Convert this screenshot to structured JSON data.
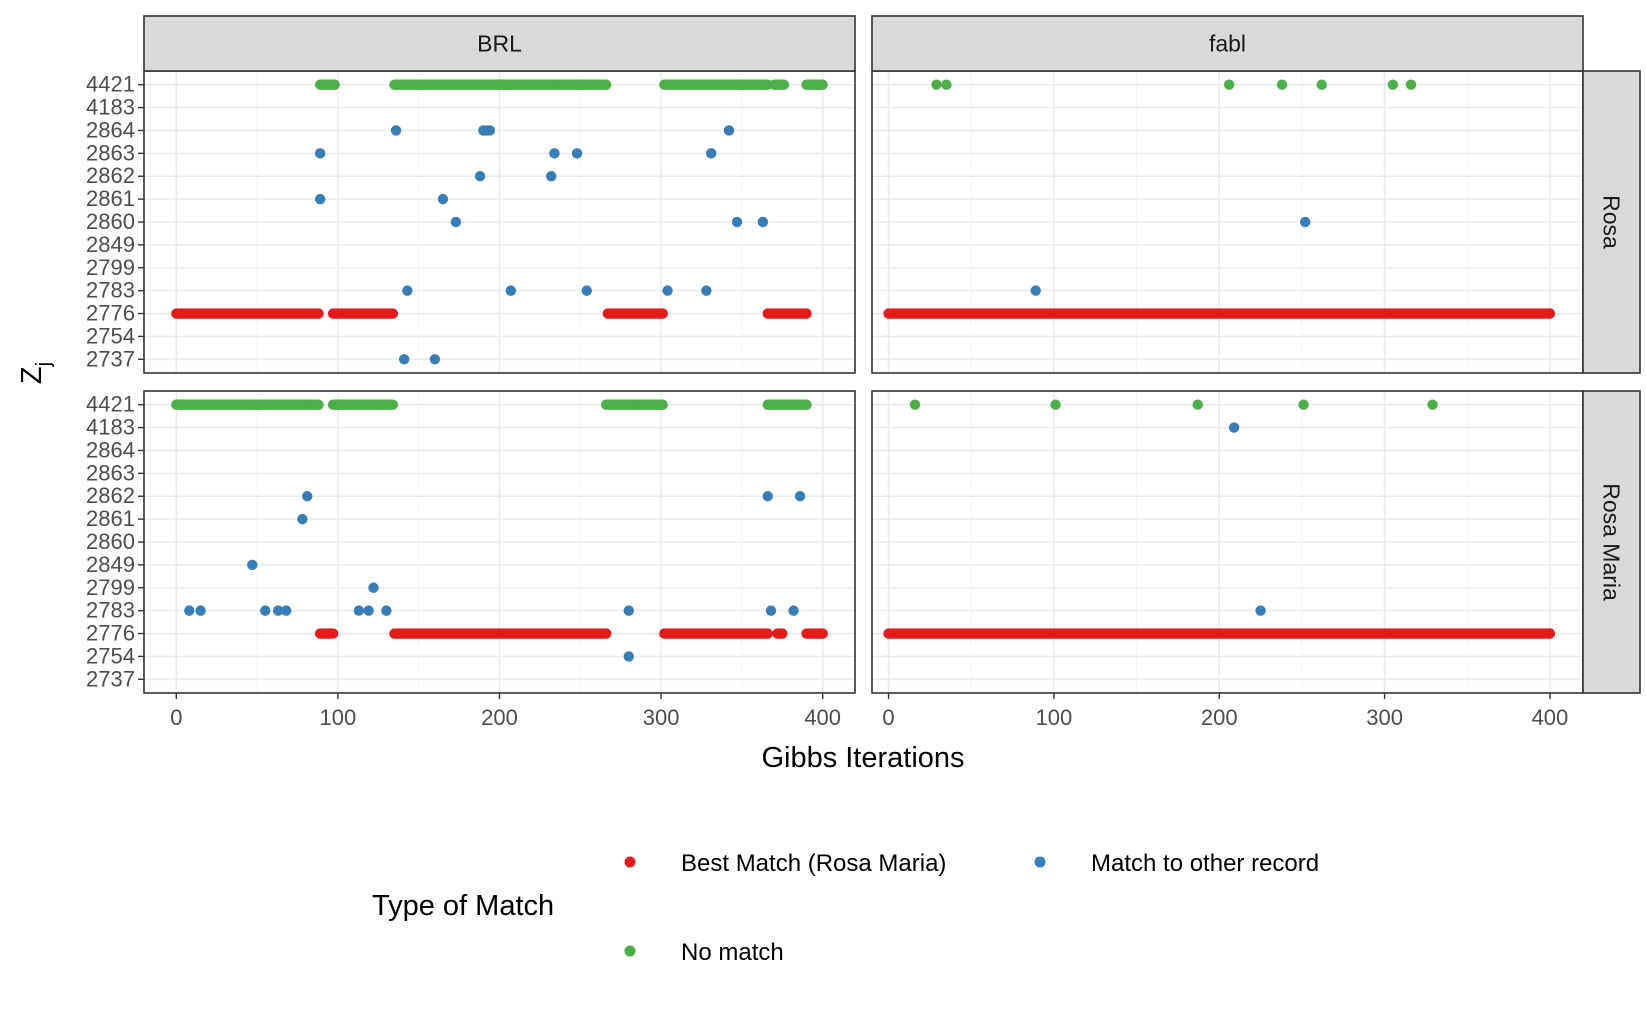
{
  "chart_data": {
    "type": "scatter",
    "xlabel": "Gibbs Iterations",
    "ylabel_main": "Z",
    "ylabel_sub": "j",
    "x_ticks": [
      0,
      100,
      200,
      300,
      400
    ],
    "y_categories": [
      "4421",
      "4183",
      "2864",
      "2863",
      "2862",
      "2861",
      "2860",
      "2849",
      "2799",
      "2783",
      "2776",
      "2754",
      "2737"
    ],
    "column_facets": [
      "BRL",
      "fabl"
    ],
    "row_facets": [
      "Rosa",
      "Rosa Maria"
    ],
    "grid": true,
    "legend": {
      "title": "Type of Match",
      "position": "bottom",
      "entries": [
        {
          "key": "best",
          "label": "Best Match (Rosa Maria)",
          "color": "#e41a1c"
        },
        {
          "key": "other",
          "label": "Match to other record",
          "color": "#377eb8"
        },
        {
          "key": "none",
          "label": "No match",
          "color": "#4daf4a"
        }
      ]
    },
    "panels": [
      {
        "col": "BRL",
        "row": "Rosa",
        "xlim": [
          -20,
          420
        ],
        "runs": [
          {
            "cat": "4421",
            "type": "none",
            "from": 89,
            "to": 98
          },
          {
            "cat": "4421",
            "type": "none",
            "from": 135,
            "to": 266
          },
          {
            "cat": "4421",
            "type": "none",
            "from": 302,
            "to": 366
          },
          {
            "cat": "4421",
            "type": "none",
            "from": 370,
            "to": 376
          },
          {
            "cat": "4421",
            "type": "none",
            "from": 390,
            "to": 400
          },
          {
            "cat": "2776",
            "type": "best",
            "from": 0,
            "to": 88
          },
          {
            "cat": "2776",
            "type": "best",
            "from": 97,
            "to": 134
          },
          {
            "cat": "2776",
            "type": "best",
            "from": 267,
            "to": 301
          },
          {
            "cat": "2776",
            "type": "best",
            "from": 366,
            "to": 390
          }
        ],
        "points": [
          {
            "cat": "2864",
            "type": "other",
            "x": 136
          },
          {
            "cat": "2864",
            "type": "other",
            "x": 190
          },
          {
            "cat": "2864",
            "type": "other",
            "x": 192
          },
          {
            "cat": "2864",
            "type": "other",
            "x": 194
          },
          {
            "cat": "2864",
            "type": "other",
            "x": 342
          },
          {
            "cat": "2863",
            "type": "other",
            "x": 89
          },
          {
            "cat": "2863",
            "type": "other",
            "x": 234
          },
          {
            "cat": "2863",
            "type": "other",
            "x": 248
          },
          {
            "cat": "2863",
            "type": "other",
            "x": 331
          },
          {
            "cat": "2862",
            "type": "other",
            "x": 188
          },
          {
            "cat": "2862",
            "type": "other",
            "x": 232
          },
          {
            "cat": "2861",
            "type": "other",
            "x": 89
          },
          {
            "cat": "2861",
            "type": "other",
            "x": 165
          },
          {
            "cat": "2860",
            "type": "other",
            "x": 173
          },
          {
            "cat": "2860",
            "type": "other",
            "x": 347
          },
          {
            "cat": "2860",
            "type": "other",
            "x": 363
          },
          {
            "cat": "2783",
            "type": "other",
            "x": 143
          },
          {
            "cat": "2783",
            "type": "other",
            "x": 207
          },
          {
            "cat": "2783",
            "type": "other",
            "x": 254
          },
          {
            "cat": "2783",
            "type": "other",
            "x": 304
          },
          {
            "cat": "2783",
            "type": "other",
            "x": 328
          },
          {
            "cat": "2737",
            "type": "other",
            "x": 141
          },
          {
            "cat": "2737",
            "type": "other",
            "x": 160
          }
        ]
      },
      {
        "col": "fabl",
        "row": "Rosa",
        "xlim": [
          -10,
          420
        ],
        "runs": [
          {
            "cat": "2776",
            "type": "best",
            "from": 0,
            "to": 400
          }
        ],
        "points": [
          {
            "cat": "4421",
            "type": "none",
            "x": 29
          },
          {
            "cat": "4421",
            "type": "none",
            "x": 35
          },
          {
            "cat": "4421",
            "type": "none",
            "x": 206
          },
          {
            "cat": "4421",
            "type": "none",
            "x": 238
          },
          {
            "cat": "4421",
            "type": "none",
            "x": 262
          },
          {
            "cat": "4421",
            "type": "none",
            "x": 305
          },
          {
            "cat": "4421",
            "type": "none",
            "x": 316
          },
          {
            "cat": "2860",
            "type": "other",
            "x": 252
          },
          {
            "cat": "2783",
            "type": "other",
            "x": 89
          }
        ]
      },
      {
        "col": "BRL",
        "row": "Rosa Maria",
        "xlim": [
          -20,
          420
        ],
        "runs": [
          {
            "cat": "4421",
            "type": "none",
            "from": 0,
            "to": 88
          },
          {
            "cat": "4421",
            "type": "none",
            "from": 97,
            "to": 134
          },
          {
            "cat": "4421",
            "type": "none",
            "from": 266,
            "to": 301
          },
          {
            "cat": "4421",
            "type": "none",
            "from": 366,
            "to": 390
          },
          {
            "cat": "2776",
            "type": "best",
            "from": 89,
            "to": 97
          },
          {
            "cat": "2776",
            "type": "best",
            "from": 135,
            "to": 266
          },
          {
            "cat": "2776",
            "type": "best",
            "from": 302,
            "to": 366
          },
          {
            "cat": "2776",
            "type": "best",
            "from": 372,
            "to": 375
          },
          {
            "cat": "2776",
            "type": "best",
            "from": 390,
            "to": 400
          }
        ],
        "points": [
          {
            "cat": "2862",
            "type": "other",
            "x": 81
          },
          {
            "cat": "2862",
            "type": "other",
            "x": 366
          },
          {
            "cat": "2862",
            "type": "other",
            "x": 386
          },
          {
            "cat": "2861",
            "type": "other",
            "x": 78
          },
          {
            "cat": "2849",
            "type": "other",
            "x": 47
          },
          {
            "cat": "2799",
            "type": "other",
            "x": 122
          },
          {
            "cat": "2783",
            "type": "other",
            "x": 8
          },
          {
            "cat": "2783",
            "type": "other",
            "x": 15
          },
          {
            "cat": "2783",
            "type": "other",
            "x": 55
          },
          {
            "cat": "2783",
            "type": "other",
            "x": 63
          },
          {
            "cat": "2783",
            "type": "other",
            "x": 68
          },
          {
            "cat": "2783",
            "type": "other",
            "x": 113
          },
          {
            "cat": "2783",
            "type": "other",
            "x": 119
          },
          {
            "cat": "2783",
            "type": "other",
            "x": 130
          },
          {
            "cat": "2783",
            "type": "other",
            "x": 280
          },
          {
            "cat": "2783",
            "type": "other",
            "x": 368
          },
          {
            "cat": "2783",
            "type": "other",
            "x": 382
          },
          {
            "cat": "2754",
            "type": "other",
            "x": 280
          }
        ]
      },
      {
        "col": "fabl",
        "row": "Rosa Maria",
        "xlim": [
          -10,
          420
        ],
        "runs": [
          {
            "cat": "2776",
            "type": "best",
            "from": 0,
            "to": 400
          }
        ],
        "points": [
          {
            "cat": "4421",
            "type": "none",
            "x": 16
          },
          {
            "cat": "4421",
            "type": "none",
            "x": 101
          },
          {
            "cat": "4421",
            "type": "none",
            "x": 187
          },
          {
            "cat": "4421",
            "type": "none",
            "x": 251
          },
          {
            "cat": "4421",
            "type": "none",
            "x": 329
          },
          {
            "cat": "4183",
            "type": "other",
            "x": 209
          },
          {
            "cat": "2783",
            "type": "other",
            "x": 225
          }
        ]
      }
    ]
  }
}
